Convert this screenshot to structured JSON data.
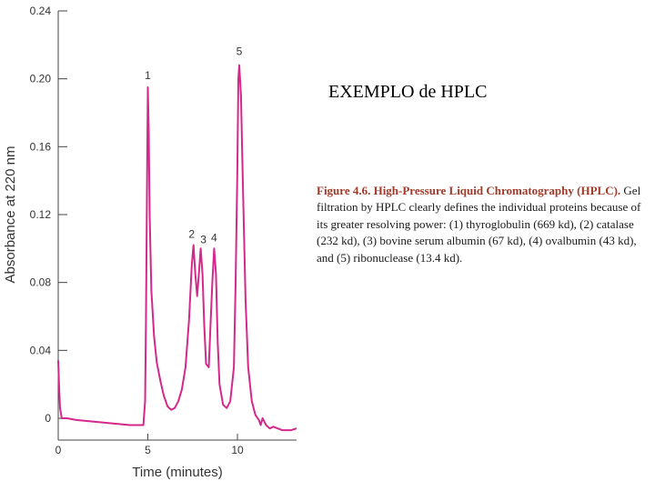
{
  "slide": {
    "title": "EXEMPLO de HPLC"
  },
  "caption": {
    "heading": "Figure 4.6. High-Pressure Liquid Chromatography (HPLC).",
    "body": " Gel filtration by HPLC clearly defines the individual proteins because of its greater resolving power: (1) thyroglobulin (669 kd), (2) catalase (232 kd), (3) bovine serum albumin (67 kd), (4) ovalbumin (43 kd), and (5) ribonuclease (13.4 kd)."
  },
  "colors": {
    "trace": "#d4288a",
    "axis": "#444444",
    "caption_heading": "#a03a2a"
  },
  "chart_data": {
    "type": "line",
    "xlabel": "Time (minutes)",
    "ylabel": "Absorbance at 220 nm",
    "xlim": [
      0,
      13.3
    ],
    "ylim": [
      0,
      0.24
    ],
    "x_ticks": [
      0,
      5,
      10
    ],
    "x_tick_labels": [
      "0",
      "5",
      "10"
    ],
    "y_ticks": [
      0,
      0.04,
      0.08,
      0.12,
      0.16,
      0.2,
      0.24
    ],
    "y_tick_labels": [
      "0",
      "0.04",
      "0.08",
      "0.12",
      "0.16",
      "0.20",
      "0.24"
    ],
    "grid": false,
    "series": [
      {
        "x": [
          0,
          0.05,
          0.1,
          0.2,
          0.5,
          1,
          2,
          3,
          4,
          4.5,
          4.75,
          4.85,
          4.9,
          4.95,
          5.0,
          5.05,
          5.1,
          5.2,
          5.35,
          5.5,
          5.7,
          5.9,
          6.1,
          6.3,
          6.5,
          6.7,
          6.9,
          7.1,
          7.3,
          7.45,
          7.55,
          7.65,
          7.75,
          7.85,
          7.95,
          8.05,
          8.15,
          8.25,
          8.4,
          8.5,
          8.6,
          8.7,
          8.8,
          8.9,
          9.0,
          9.2,
          9.4,
          9.6,
          9.8,
          9.9,
          10.0,
          10.05,
          10.1,
          10.2,
          10.3,
          10.45,
          10.6,
          10.8,
          11.0,
          11.2,
          11.3,
          11.4,
          11.5,
          11.6,
          11.8,
          12,
          12.5,
          13,
          13.3
        ],
        "y": [
          0.034,
          0.018,
          0.006,
          0.0,
          0.0,
          -0.001,
          -0.002,
          -0.003,
          -0.004,
          -0.004,
          -0.004,
          0.01,
          0.06,
          0.13,
          0.195,
          0.17,
          0.12,
          0.075,
          0.048,
          0.033,
          0.022,
          0.013,
          0.007,
          0.005,
          0.006,
          0.01,
          0.017,
          0.03,
          0.058,
          0.09,
          0.102,
          0.085,
          0.072,
          0.085,
          0.1,
          0.085,
          0.055,
          0.032,
          0.03,
          0.055,
          0.08,
          0.1,
          0.085,
          0.045,
          0.02,
          0.008,
          0.006,
          0.01,
          0.03,
          0.08,
          0.15,
          0.2,
          0.208,
          0.19,
          0.14,
          0.07,
          0.03,
          0.01,
          0.002,
          -0.001,
          -0.004,
          0.0,
          -0.002,
          -0.004,
          -0.006,
          -0.005,
          -0.007,
          -0.007,
          -0.006
        ]
      }
    ],
    "annotations": [
      {
        "text": "1",
        "x": 5.0,
        "y": 0.195
      },
      {
        "text": "2",
        "x": 7.55,
        "y": 0.102
      },
      {
        "text": "3",
        "x": 8.0,
        "y": 0.1
      },
      {
        "text": "4",
        "x": 8.7,
        "y": 0.1
      },
      {
        "text": "5",
        "x": 10.1,
        "y": 0.208
      }
    ]
  }
}
